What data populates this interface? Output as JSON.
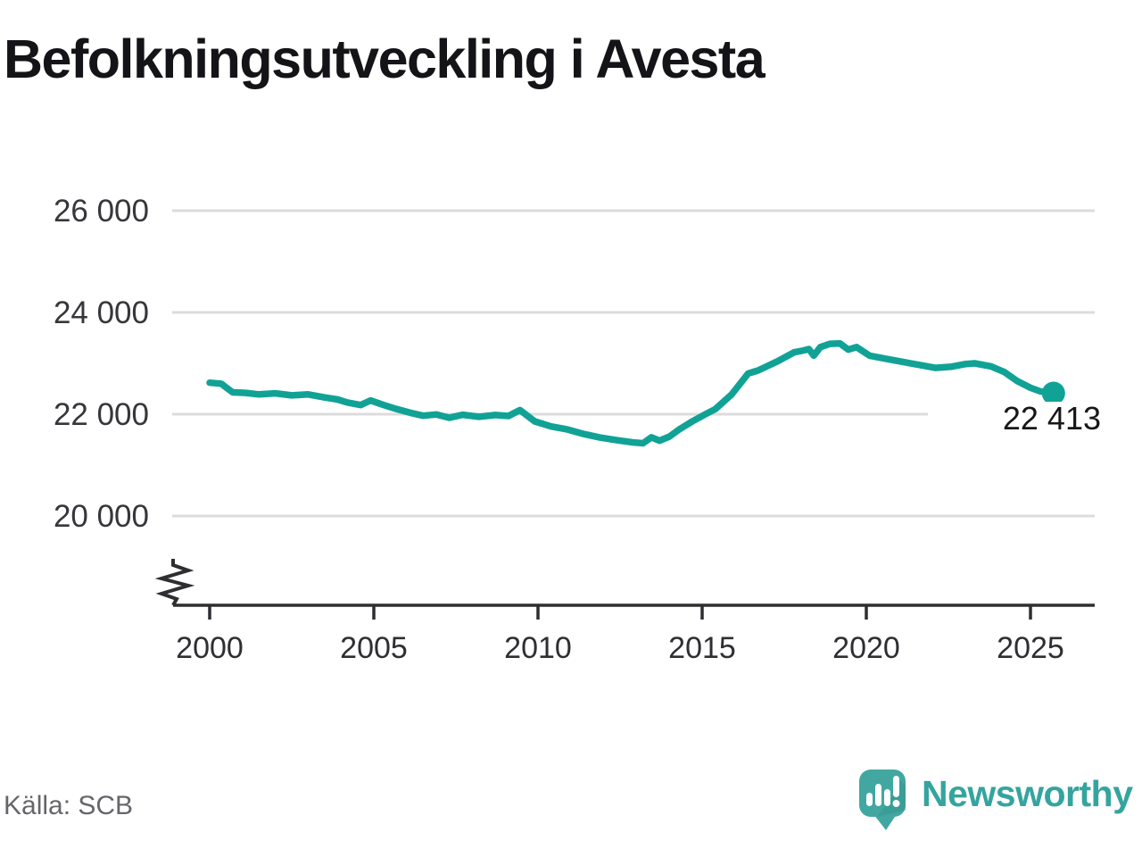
{
  "title": "Befolkningsutveckling i Avesta",
  "source": "Källa: SCB",
  "branding": {
    "name": "Newsworthy"
  },
  "colors": {
    "line": "#11A296",
    "grid": "#DCDCDC",
    "axis": "#2E2E32",
    "title_text": "#141418",
    "tick_text": "#36363B",
    "value_label_text": "#17171A",
    "source_text": "#65666B",
    "brand_teal": "#43A7A1",
    "brand_text": "#35A49E"
  },
  "chart_data": {
    "type": "line",
    "title": "Befolkningsutveckling i Avesta",
    "xlabel": "",
    "ylabel": "",
    "grid": "horizontal",
    "legend": "none",
    "axis_break": true,
    "xlim": [
      2000,
      2027
    ],
    "ylim": [
      19800,
      26600
    ],
    "x_ticks": [
      2000,
      2005,
      2010,
      2015,
      2020,
      2025
    ],
    "y_ticks": [
      {
        "value": 26000,
        "label": "26 000"
      },
      {
        "value": 24000,
        "label": "24 000"
      },
      {
        "value": 22000,
        "label": "22 000"
      },
      {
        "value": 20000,
        "label": "20 000"
      }
    ],
    "end_point": {
      "year": 2025.7,
      "value": 22413,
      "label": "22 413"
    },
    "points": [
      [
        2000.0,
        22620
      ],
      [
        2000.35,
        22600
      ],
      [
        2000.7,
        22430
      ],
      [
        2001.1,
        22420
      ],
      [
        2001.5,
        22390
      ],
      [
        2002.0,
        22410
      ],
      [
        2002.5,
        22370
      ],
      [
        2003.0,
        22390
      ],
      [
        2003.5,
        22330
      ],
      [
        2003.9,
        22290
      ],
      [
        2004.2,
        22230
      ],
      [
        2004.6,
        22180
      ],
      [
        2004.9,
        22270
      ],
      [
        2005.3,
        22180
      ],
      [
        2005.7,
        22100
      ],
      [
        2006.1,
        22030
      ],
      [
        2006.5,
        21970
      ],
      [
        2006.9,
        21995
      ],
      [
        2007.3,
        21930
      ],
      [
        2007.7,
        21990
      ],
      [
        2008.2,
        21950
      ],
      [
        2008.7,
        21985
      ],
      [
        2009.1,
        21965
      ],
      [
        2009.45,
        22080
      ],
      [
        2009.9,
        21860
      ],
      [
        2010.4,
        21760
      ],
      [
        2010.9,
        21700
      ],
      [
        2011.4,
        21610
      ],
      [
        2011.9,
        21540
      ],
      [
        2012.4,
        21490
      ],
      [
        2012.9,
        21445
      ],
      [
        2013.2,
        21430
      ],
      [
        2013.45,
        21545
      ],
      [
        2013.7,
        21480
      ],
      [
        2014.0,
        21560
      ],
      [
        2014.3,
        21700
      ],
      [
        2014.7,
        21860
      ],
      [
        2015.1,
        22000
      ],
      [
        2015.4,
        22100
      ],
      [
        2015.9,
        22390
      ],
      [
        2016.4,
        22800
      ],
      [
        2016.7,
        22860
      ],
      [
        2017.3,
        23040
      ],
      [
        2017.8,
        23215
      ],
      [
        2018.1,
        23255
      ],
      [
        2018.25,
        23280
      ],
      [
        2018.4,
        23150
      ],
      [
        2018.6,
        23320
      ],
      [
        2018.9,
        23385
      ],
      [
        2019.2,
        23390
      ],
      [
        2019.45,
        23270
      ],
      [
        2019.7,
        23320
      ],
      [
        2020.1,
        23150
      ],
      [
        2020.6,
        23090
      ],
      [
        2021.1,
        23030
      ],
      [
        2021.6,
        22970
      ],
      [
        2022.1,
        22910
      ],
      [
        2022.6,
        22935
      ],
      [
        2023.0,
        22985
      ],
      [
        2023.3,
        23000
      ],
      [
        2023.8,
        22940
      ],
      [
        2024.2,
        22830
      ],
      [
        2024.6,
        22650
      ],
      [
        2025.0,
        22520
      ],
      [
        2025.3,
        22450
      ],
      [
        2025.55,
        22425
      ],
      [
        2025.7,
        22413
      ]
    ]
  }
}
